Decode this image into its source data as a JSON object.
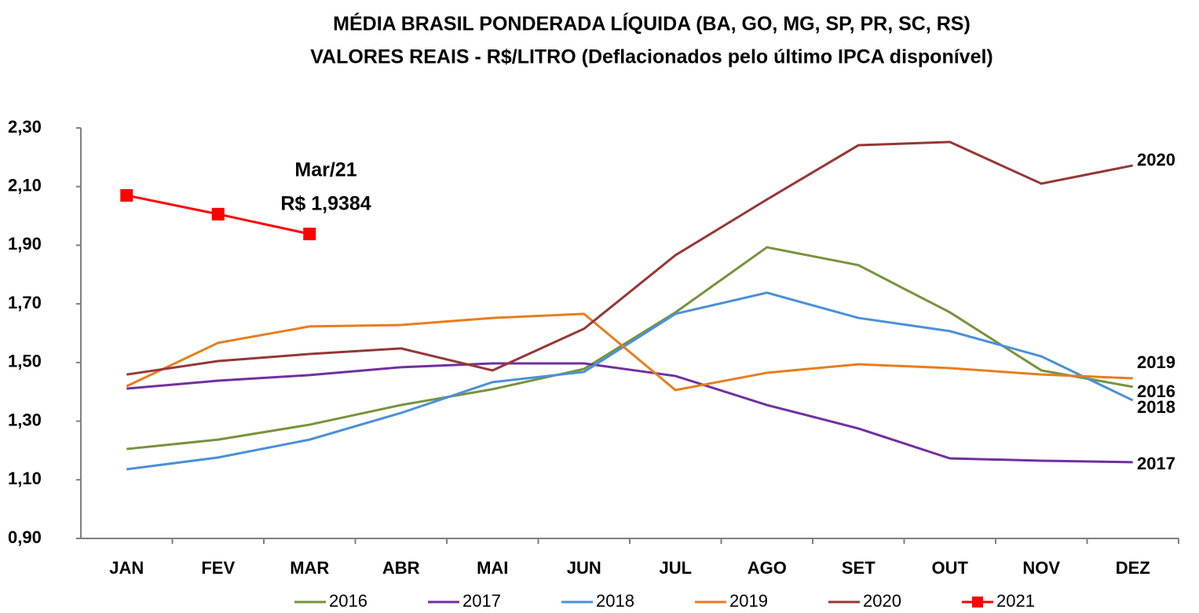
{
  "chart_data": {
    "type": "line",
    "title": "MÉDIA BRASIL PONDERADA LÍQUIDA (BA, GO, MG, SP, PR, SC, RS)",
    "subtitle": "VALORES REAIS - R$/LITRO (Deflacionados pelo último IPCA disponível)",
    "annotations": [
      "Mar/21",
      "R$ 1,9384"
    ],
    "categories": [
      "JAN",
      "FEV",
      "MAR",
      "ABR",
      "MAI",
      "JUN",
      "JUL",
      "AGO",
      "SET",
      "OUT",
      "NOV",
      "DEZ"
    ],
    "ylim": [
      0.9,
      2.3
    ],
    "yticks": [
      {
        "value": 0.9,
        "label": "0,90"
      },
      {
        "value": 1.1,
        "label": "1,10"
      },
      {
        "value": 1.3,
        "label": "1,30"
      },
      {
        "value": 1.5,
        "label": "1,50"
      },
      {
        "value": 1.7,
        "label": "1,70"
      },
      {
        "value": 1.9,
        "label": "1,90"
      },
      {
        "value": 2.1,
        "label": "2,10"
      },
      {
        "value": 2.3,
        "label": "2,30"
      }
    ],
    "grid": false,
    "legend": "bottom",
    "series": [
      {
        "name": "2016",
        "color": "#77933c",
        "values": [
          1.205,
          1.237,
          1.288,
          1.355,
          1.409,
          1.478,
          1.671,
          1.893,
          1.832,
          1.671,
          1.473,
          1.417
        ]
      },
      {
        "name": "2017",
        "color": "#7030a0",
        "values": [
          1.411,
          1.438,
          1.457,
          1.484,
          1.497,
          1.497,
          1.454,
          1.355,
          1.275,
          1.173,
          1.165,
          1.16
        ]
      },
      {
        "name": "2018",
        "color": "#4a90d9",
        "values": [
          1.136,
          1.176,
          1.237,
          1.328,
          1.433,
          1.468,
          1.666,
          1.738,
          1.652,
          1.607,
          1.521,
          1.371
        ]
      },
      {
        "name": "2019",
        "color": "#e87d1e",
        "values": [
          1.419,
          1.567,
          1.623,
          1.628,
          1.652,
          1.666,
          1.406,
          1.465,
          1.494,
          1.481,
          1.459,
          1.446
        ]
      },
      {
        "name": "2020",
        "color": "#953735",
        "values": [
          1.459,
          1.505,
          1.529,
          1.548,
          1.473,
          1.615,
          1.866,
          2.056,
          2.241,
          2.252,
          2.11,
          2.172
        ]
      },
      {
        "name": "2021",
        "color": "#ff0000",
        "marker": "square",
        "values": [
          2.07,
          2.006,
          1.9384,
          null,
          null,
          null,
          null,
          null,
          null,
          null,
          null,
          null
        ]
      }
    ]
  }
}
